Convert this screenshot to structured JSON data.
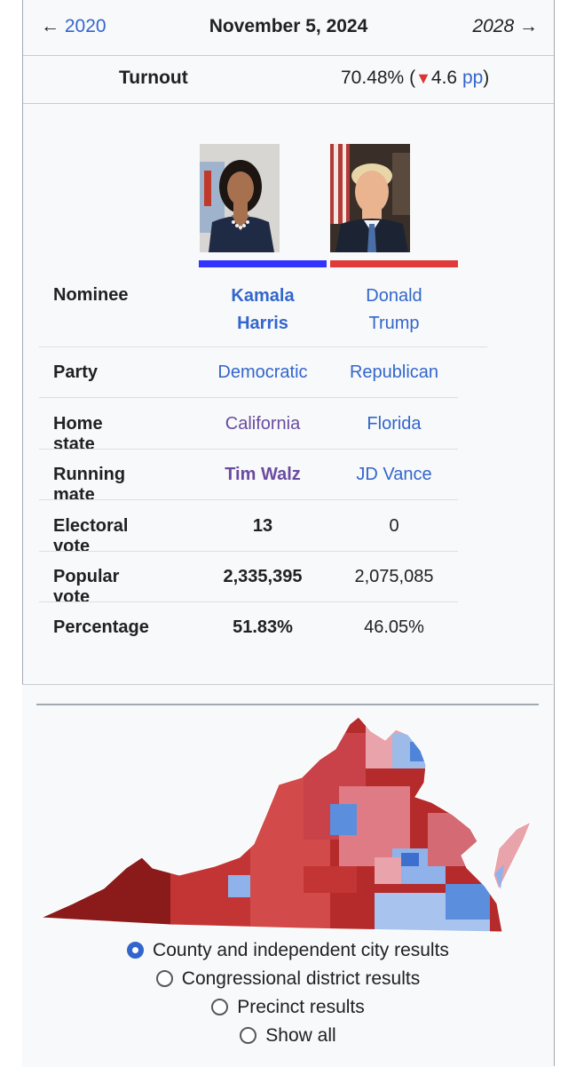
{
  "nav": {
    "prev_label": "2020",
    "date": "November 5, 2024",
    "next_label": "2028"
  },
  "turnout": {
    "label": "Turnout",
    "value": "70.48%",
    "change": "4.6",
    "change_unit": "pp"
  },
  "colors": {
    "democratic": "#3333ff",
    "republican": "#e03a3a",
    "link": "#3366cc"
  },
  "candidates": {
    "labels": {
      "nominee": "Nominee",
      "party": "Party",
      "home_state": "Home state",
      "running_mate": "Running mate",
      "electoral_vote": "Electoral vote",
      "popular_vote": "Popular vote",
      "percentage": "Percentage"
    },
    "harris": {
      "first": "Kamala",
      "last": "Harris",
      "party": "Democratic",
      "home_state": "California",
      "running_mate": "Tim Walz",
      "electoral_vote": "13",
      "popular_vote": "2,335,395",
      "percentage": "51.83%"
    },
    "trump": {
      "first": "Donald",
      "last": "Trump",
      "party": "Republican",
      "home_state": "Florida",
      "running_mate": "JD Vance",
      "electoral_vote": "0",
      "popular_vote": "2,075,085",
      "percentage": "46.05%"
    }
  },
  "map_options": [
    {
      "label": "County and independent city results",
      "checked": true
    },
    {
      "label": "Congressional district results",
      "checked": false
    },
    {
      "label": "Precinct results",
      "checked": false
    },
    {
      "label": "Show all",
      "checked": false
    }
  ]
}
